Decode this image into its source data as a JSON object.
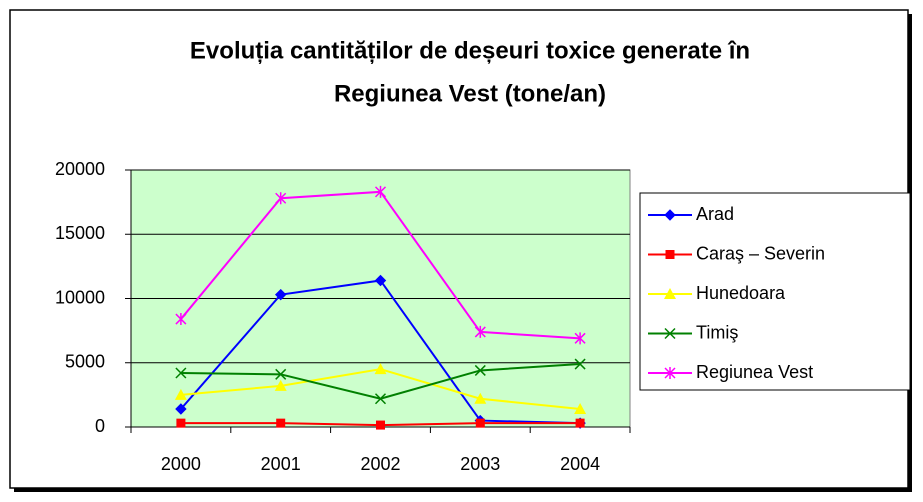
{
  "chart_data": {
    "type": "line",
    "title": [
      "Evoluția cantităților de deșeuri toxice generate în",
      "Regiunea Vest (tone/an)"
    ],
    "categories": [
      "2000",
      "2001",
      "2002",
      "2003",
      "2004"
    ],
    "series": [
      {
        "name": "Arad",
        "color": "#0000ff",
        "marker": "diamond",
        "values": [
          1400,
          10300,
          11400,
          500,
          300
        ]
      },
      {
        "name": "Caraş – Severin",
        "color": "#ff0000",
        "marker": "square",
        "values": [
          300,
          300,
          150,
          300,
          300
        ]
      },
      {
        "name": "Hunedoara",
        "color": "#ffff00",
        "marker": "triangle",
        "values": [
          2500,
          3200,
          4500,
          2200,
          1400
        ]
      },
      {
        "name": "Timiş",
        "color": "#008000",
        "marker": "x",
        "values": [
          4200,
          4100,
          2200,
          4400,
          4900
        ]
      },
      {
        "name": "Regiunea Vest",
        "color": "#ff00ff",
        "marker": "asterisk",
        "values": [
          8400,
          17800,
          18300,
          7400,
          6900
        ]
      }
    ],
    "ylim": [
      0,
      20000
    ],
    "yticks": [
      0,
      5000,
      10000,
      15000,
      20000
    ],
    "grid": true,
    "plot_background": "#ccffcc",
    "legend": "right"
  }
}
